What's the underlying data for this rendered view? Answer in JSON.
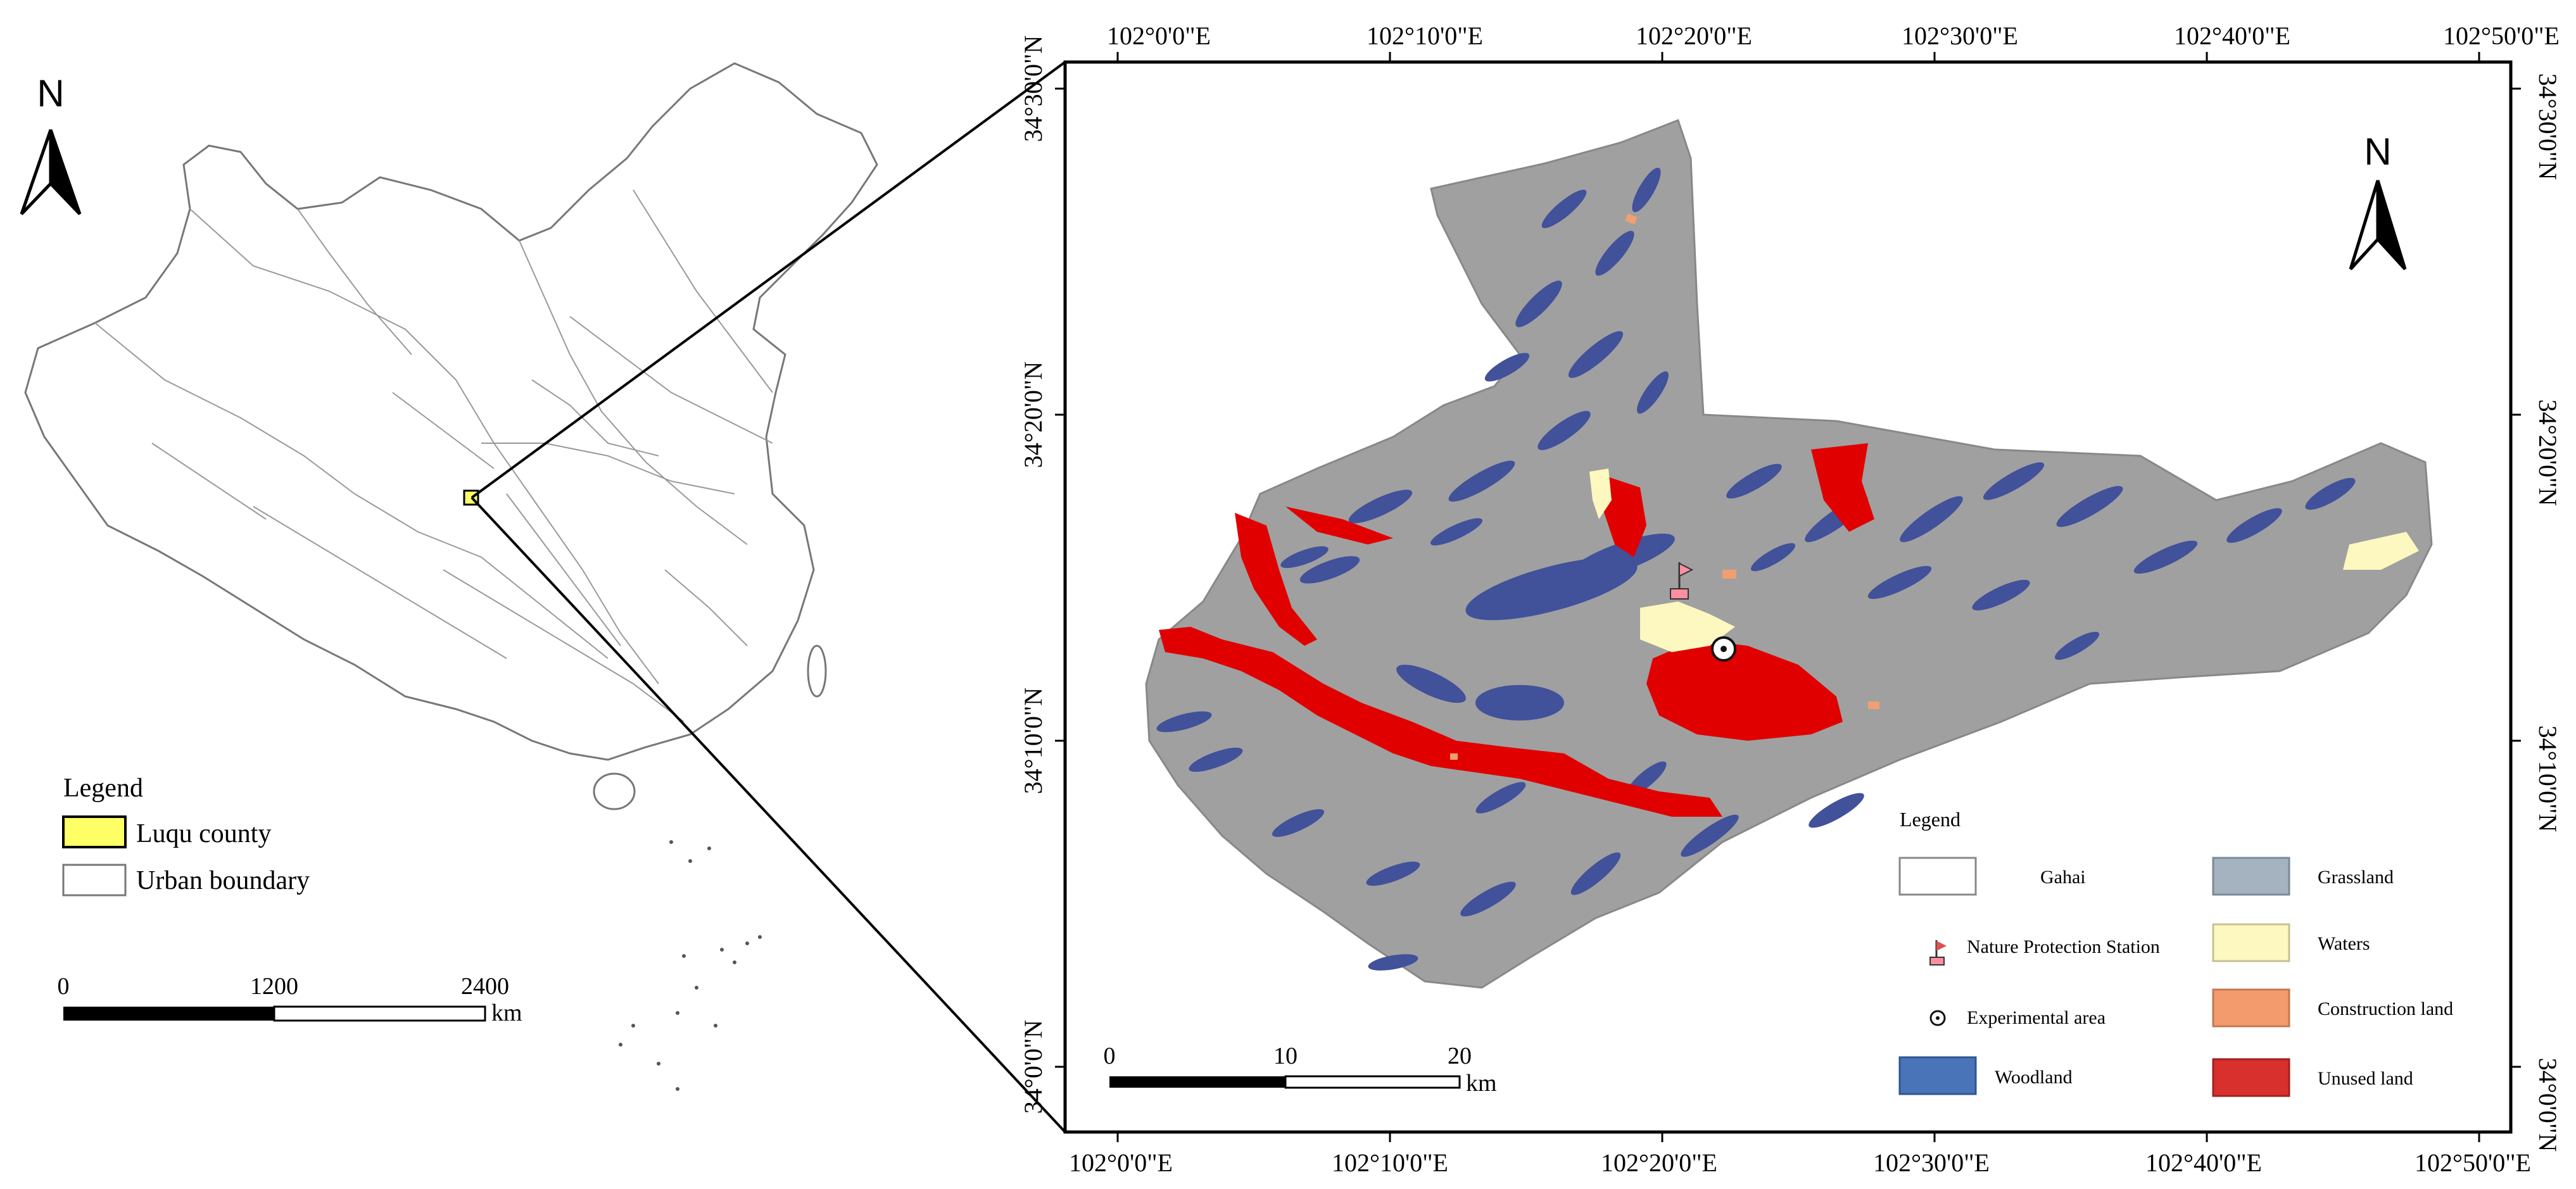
{
  "overview": {
    "north_label": "N",
    "legend": {
      "title": "Legend",
      "items": [
        {
          "label": "Luqu county",
          "color": "#ffff66"
        },
        {
          "label": "Urban boundary",
          "color": "#ffffff"
        }
      ]
    },
    "scale": {
      "ticks": [
        "0",
        "1200",
        "2400"
      ],
      "unit": "km"
    }
  },
  "detail": {
    "north_label": "N",
    "top_longitudes": [
      "102°0'0\"E",
      "102°10'0\"E",
      "102°20'0\"E",
      "102°30'0\"E",
      "102°40'0\"E",
      "102°50'0\"E"
    ],
    "bottom_longitudes": [
      "102°0'0\"E",
      "102°10'0\"E",
      "102°20'0\"E",
      "102°30'0\"E",
      "102°40'0\"E",
      "102°50'0\"E"
    ],
    "left_latitudes": [
      "34°30'0\"N",
      "34°20'0\"N",
      "34°10'0\"N",
      "34°0'0\"N"
    ],
    "right_latitudes": [
      "34°30'0\"N",
      "34°20'0\"N",
      "34°10'0\"N",
      "34°0'0\"N"
    ],
    "scale": {
      "ticks": [
        "0",
        "10",
        "20"
      ],
      "unit": "km"
    },
    "legend": {
      "title": "Legend",
      "items": [
        {
          "label": "Gahai",
          "color": "#ffffff",
          "symbol": "box"
        },
        {
          "label": "Grassland",
          "color": "#a4b3bf",
          "symbol": "box"
        },
        {
          "label": "Nature Protection Station",
          "color": "#d9534f",
          "symbol": "flag"
        },
        {
          "label": "Waters",
          "color": "#fdf8c0",
          "symbol": "box"
        },
        {
          "label": "Experimental area",
          "color": "#222222",
          "symbol": "target"
        },
        {
          "label": "Construction land",
          "color": "#f39b6d",
          "symbol": "box"
        },
        {
          "label": "Woodland",
          "color": "#4a74b8",
          "symbol": "box"
        },
        {
          "label": "Unused land",
          "color": "#d7302d",
          "symbol": "box"
        }
      ]
    },
    "colors": {
      "grassland": "#a0a0a0",
      "woodland": "#41519a",
      "unused": "#e00000",
      "waters": "#fdf8c0",
      "construction": "#f0a070"
    }
  }
}
